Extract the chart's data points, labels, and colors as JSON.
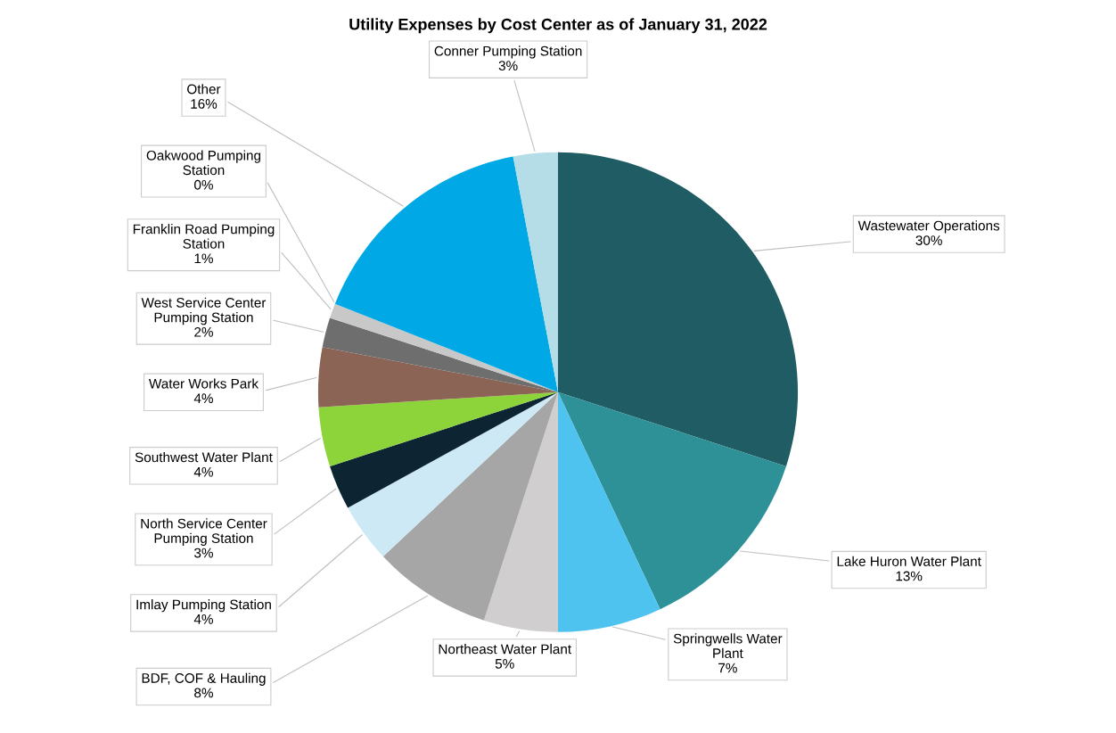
{
  "chart_data": {
    "type": "pie",
    "title": "Utility Expenses by Cost Center as of January 31, 2022",
    "categories": [
      "Wastewater Operations",
      "Lake Huron Water Plant",
      "Springwells Water Plant",
      "Northeast Water Plant",
      "BDF, COF & Hauling",
      "Imlay Pumping Station",
      "North Service Center Pumping Station",
      "Southwest Water Plant",
      "Water Works Park",
      "West Service Center Pumping Station",
      "Franklin Road Pumping Station",
      "Oakwood Pumping Station",
      "Other",
      "Conner Pumping Station"
    ],
    "values": [
      30,
      13,
      7,
      5,
      8,
      4,
      3,
      4,
      4,
      2,
      1,
      0,
      16,
      3
    ],
    "value_labels": [
      "30%",
      "13%",
      "7%",
      "5%",
      "8%",
      "4%",
      "3%",
      "4%",
      "4%",
      "2%",
      "1%",
      "0%",
      "16%",
      "3%"
    ],
    "colors": [
      "#1f5c63",
      "#2e9198",
      "#4fc3f0",
      "#d0cece",
      "#a6a6a6",
      "#cde9f6",
      "#0d2433",
      "#8cd43a",
      "#8c6455",
      "#6e6e6e",
      "#c8c8c8",
      "#f5f500",
      "#00a9e6",
      "#b4dde8"
    ],
    "legend": false
  }
}
